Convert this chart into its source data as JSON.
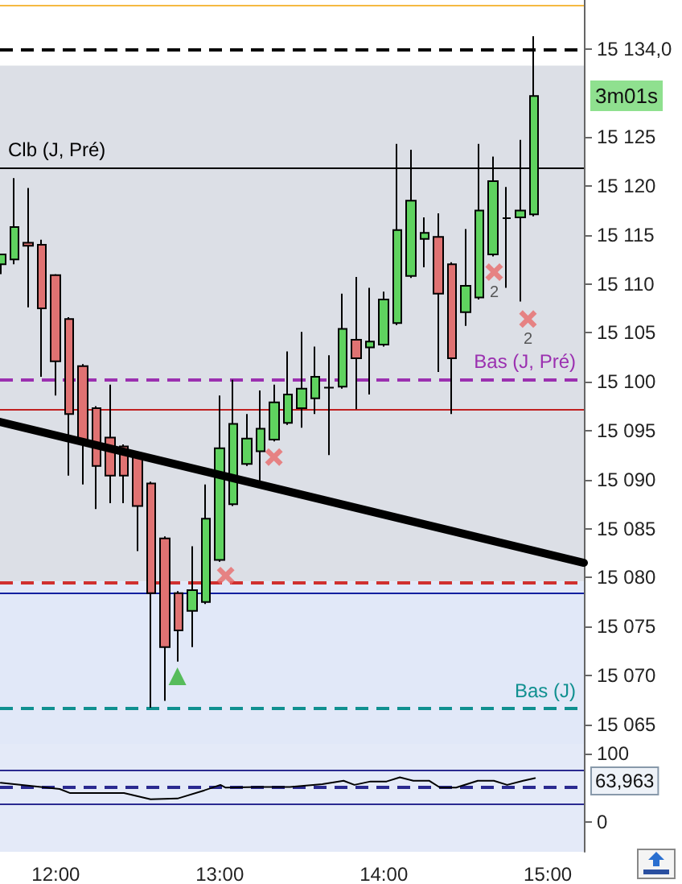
{
  "chart_data": [
    {
      "type": "candlestick",
      "xlim": [
        11.66,
        15.22
      ],
      "xticks": [
        {
          "value": 12,
          "label": null
        },
        {
          "value": 13,
          "label": null
        },
        {
          "value": 14,
          "label": null
        },
        {
          "value": 15,
          "label": null
        }
      ],
      "ylim": [
        15063,
        15139
      ],
      "yticks": [
        {
          "value": 15065,
          "label": "15 065"
        },
        {
          "value": 15070,
          "label": "15 070"
        },
        {
          "value": 15075,
          "label": "15 075"
        },
        {
          "value": 15080,
          "label": "15 080"
        },
        {
          "value": 15085,
          "label": "15 085"
        },
        {
          "value": 15090,
          "label": "15 090"
        },
        {
          "value": 15095,
          "label": "15 095"
        },
        {
          "value": 15100,
          "label": "15 100"
        },
        {
          "value": 15105,
          "label": "15 105"
        },
        {
          "value": 15110,
          "label": "15 110"
        },
        {
          "value": 15115,
          "label": "15 115"
        },
        {
          "value": 15120,
          "label": "15 120"
        },
        {
          "value": 15125,
          "label": "15 125"
        },
        {
          "value": 15134,
          "label": "15 134,0"
        }
      ],
      "tick_labels": "y",
      "grid": false,
      "bands": [
        {
          "axis": "y",
          "from": 15079.6,
          "to": 15132.3,
          "color": "#dcdfe6"
        },
        {
          "axis": "y",
          "from": 15063,
          "to": 15079.6,
          "color": "#e1e8f8"
        }
      ],
      "ref_lines": [
        {
          "axis": "y",
          "value": 15138.5,
          "label": null,
          "color": "#f5b942",
          "line_style": "solid"
        },
        {
          "axis": "y",
          "value": 15134,
          "label": null,
          "color": "#000000",
          "line_style": "dashed"
        },
        {
          "axis": "y",
          "value": 15121.9,
          "label": "Clb (J, Pré)",
          "color": "#000000",
          "line_style": "solid"
        },
        {
          "axis": "y",
          "value": 15100.3,
          "label": "Bas (J, Pré)",
          "color": "#9b30b0",
          "line_style": "dashed"
        },
        {
          "axis": "y",
          "value": 15097.2,
          "label": null,
          "color": "#c02020",
          "line_style": "solid"
        },
        {
          "axis": "y",
          "value": 15079.5,
          "label": null,
          "color": "#d03030",
          "line_style": "dashed"
        },
        {
          "axis": "y",
          "value": 15078.4,
          "label": null,
          "color": "#1020a0",
          "line_style": "solid"
        },
        {
          "axis": "y",
          "value": 15066.6,
          "label": "Bas (J)",
          "color": "#109090",
          "line_style": "dashed"
        }
      ],
      "annotations": [
        "3m01s",
        {
          "text": "2",
          "x": 14.673,
          "y": 15111.2
        },
        {
          "text": "2",
          "x": 14.879,
          "y": 15106.4
        }
      ],
      "series": [
        {
          "type": "candlestick",
          "x": [
            11.6667,
            11.75,
            11.8333,
            11.9167,
            12,
            12.0833,
            12.1667,
            12.25,
            12.3333,
            12.4167,
            12.5,
            12.5833,
            12.6667,
            12.75,
            12.8333,
            12.9167,
            13,
            13.0833,
            13.1667,
            13.25,
            13.3333,
            13.4167,
            13.5,
            13.5833,
            13.6667,
            13.75,
            13.8333,
            13.9167,
            14,
            14.0833,
            14.1667,
            14.25,
            14.3333,
            14.4167,
            14.5,
            14.5833,
            14.6667,
            14.75,
            14.8333,
            14.9167
          ],
          "ohlc": [
            [
              15112,
              15113,
              15111,
              15113
            ],
            [
              15112.5,
              15120.8,
              15112,
              15115.8
            ],
            [
              15114.2,
              15119.8,
              15107.6,
              15113.9
            ],
            [
              15114,
              15114.5,
              15100.5,
              15107.5
            ],
            [
              15110.9,
              15111,
              15098.6,
              15102.1
            ],
            [
              15106.4,
              15106.6,
              15090.4,
              15096.7
            ],
            [
              15101.6,
              15101.8,
              15089.5,
              15093.9
            ],
            [
              15097.3,
              15097.5,
              15087,
              15091.4
            ],
            [
              15094.3,
              15099.7,
              15087.6,
              15090.4
            ],
            [
              15093.4,
              15093.6,
              15087.6,
              15090.4
            ],
            [
              15092.3,
              15092.5,
              15082.7,
              15087.3
            ],
            [
              15089.6,
              15089.8,
              15066.7,
              15078.4
            ],
            [
              15084,
              15084.2,
              15067.4,
              15072.9
            ],
            [
              15078.4,
              15078.6,
              15071.4,
              15074.6
            ],
            [
              15076.6,
              15083.2,
              15072.9,
              15078.7
            ],
            [
              15077.5,
              15089.5,
              15077.3,
              15086
            ],
            [
              15081.8,
              15098.6,
              15081.6,
              15093.2
            ],
            [
              15087.5,
              15100.2,
              15087.3,
              15095.7
            ],
            [
              15091.6,
              15096.7,
              15091.4,
              15094.2
            ],
            [
              15092.9,
              15099.1,
              15089.6,
              15095.2
            ],
            [
              15094.1,
              15099.7,
              15093.9,
              15097.9
            ],
            [
              15095.8,
              15103.1,
              15095.6,
              15098.7
            ],
            [
              15097.3,
              15105.1,
              15095.3,
              15099.3
            ],
            [
              15098.3,
              15103.6,
              15096.7,
              15100.5
            ],
            [
              15099.4,
              15102.7,
              15092.5,
              15099.4
            ],
            [
              15099.5,
              15109,
              15099.3,
              15105.4
            ],
            [
              15104.3,
              15110.7,
              15097.2,
              15102.4
            ],
            [
              15103.5,
              15109.6,
              15098.7,
              15104.1
            ],
            [
              15103.8,
              15109.2,
              15103.6,
              15108.4
            ],
            [
              15106,
              15124.3,
              15105.8,
              15115.5
            ],
            [
              15110.8,
              15123.7,
              15110.6,
              15118.5
            ],
            [
              15114.6,
              15116.8,
              15111.7,
              15115.2
            ],
            [
              15114.8,
              15117.2,
              15101,
              15109
            ],
            [
              15112,
              15112.2,
              15096.7,
              15102.4
            ],
            [
              15107.1,
              15115.6,
              15105.7,
              15109.8
            ],
            [
              15108.6,
              15124.3,
              15108.4,
              15117.5
            ],
            [
              15113,
              15123,
              15112.8,
              15120.5
            ],
            [
              15116.7,
              15119.9,
              15109.6,
              15116.7
            ],
            [
              15116.8,
              15124.7,
              15108.2,
              15117.5
            ],
            [
              15117.1,
              15135.3,
              15116.9,
              15129.2
            ]
          ],
          "colors": [
            "#5fd35f",
            "#5fd35f",
            "#e07272",
            "#e07272",
            "#e07272",
            "#e07272",
            "#e07272",
            "#e07272",
            "#e07272",
            "#e07272",
            "#e07272",
            "#e07272",
            "#e07272",
            "#e07272",
            "#5fd35f",
            "#5fd35f",
            "#5fd35f",
            "#5fd35f",
            "#5fd35f",
            "#5fd35f",
            "#5fd35f",
            "#5fd35f",
            "#5fd35f",
            "#5fd35f",
            "#000000",
            "#5fd35f",
            "#e07272",
            "#5fd35f",
            "#5fd35f",
            "#5fd35f",
            "#5fd35f",
            "#5fd35f",
            "#e07272",
            "#e07272",
            "#5fd35f",
            "#5fd35f",
            "#5fd35f",
            "#000000",
            "#5fd35f",
            "#5fd35f"
          ]
        },
        {
          "type": "line",
          "x": [
            11.66,
            15.22
          ],
          "values": [
            15095.9,
            15081.5
          ],
          "color": "#000000",
          "marker": "none"
        },
        {
          "type": "scatter",
          "marker": "cross",
          "color": "#e86a6a",
          "x": [
            13.036,
            13.33,
            14.673,
            14.879
          ],
          "values": [
            15080.2,
            15092.3,
            15111.2,
            15106.4
          ]
        },
        {
          "type": "scatter",
          "marker": "triangle",
          "color": "#33b033",
          "x": [
            12.742
          ],
          "values": [
            15069.9
          ]
        }
      ]
    },
    {
      "type": "line",
      "xlim": [
        11.66,
        15.22
      ],
      "xticks": [
        {
          "value": 12,
          "label": "12:00"
        },
        {
          "value": 13,
          "label": "13:00"
        },
        {
          "value": 14,
          "label": "14:00"
        },
        {
          "value": 15,
          "label": "15:00"
        }
      ],
      "ylim": [
        -44,
        114
      ],
      "yticks": [
        0,
        100
      ],
      "grid": false,
      "marker": "none",
      "annotations": [
        "63,963"
      ],
      "bands": [
        {
          "axis": "y",
          "from": -44,
          "to": 114,
          "color": "#e4eaf8"
        }
      ],
      "ref_lines": [
        {
          "axis": "y",
          "value": 75,
          "label": null,
          "color": "#2a2a90",
          "line_style": "solid"
        },
        {
          "axis": "y",
          "value": 50,
          "label": null,
          "color": "#2a2a90",
          "line_style": "dashed"
        },
        {
          "axis": "y",
          "value": 25,
          "label": null,
          "color": "#2a2a90",
          "line_style": "solid"
        }
      ],
      "series": [
        {
          "x": [
            11.664,
            11.794,
            12.024,
            12.088,
            12.416,
            12.578,
            12.742,
            12.906,
            13.004,
            13.036,
            13.232,
            13.428,
            13.625,
            13.755,
            13.821,
            13.919,
            14.017,
            14.098,
            14.18,
            14.278,
            14.343,
            14.441,
            14.573,
            14.671,
            14.752,
            14.85,
            14.922
          ],
          "values": [
            57,
            54,
            48,
            42,
            42,
            33,
            34,
            46,
            54,
            50,
            51,
            51,
            55,
            60,
            54,
            59,
            59,
            65,
            60,
            60,
            50,
            50,
            60,
            60,
            54,
            60,
            64
          ],
          "color": "#000000"
        }
      ]
    }
  ]
}
